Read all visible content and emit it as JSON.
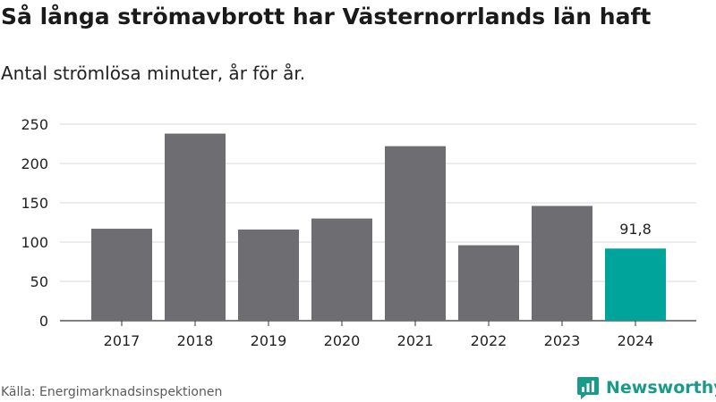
{
  "header": {
    "title": "Så långa strömavbrott har Västernorrlands län haft",
    "subtitle": "Antal strömlösa minuter, år för år."
  },
  "footer": {
    "source": "Källa: Energimarknadsinspektionen",
    "brand": "Newsworthy"
  },
  "colors": {
    "bar": "#6e6d72",
    "highlight": "#00a49a",
    "brand": "#1a9a8a"
  },
  "chart_data": {
    "type": "bar",
    "title": "Så långa strömavbrott har Västernorrlands län haft",
    "subtitle": "Antal strömlösa minuter, år för år.",
    "categories": [
      "2017",
      "2018",
      "2019",
      "2020",
      "2021",
      "2022",
      "2023",
      "2024"
    ],
    "values": [
      117,
      238,
      116,
      130,
      222,
      96,
      146,
      91.8
    ],
    "highlight_index": 7,
    "data_labels": [
      {
        "index": 7,
        "text": "91,8"
      }
    ],
    "xlabel": "",
    "ylabel": "",
    "ylim": [
      0,
      250
    ],
    "yticks": [
      0,
      50,
      100,
      150,
      200,
      250
    ],
    "grid": true
  }
}
